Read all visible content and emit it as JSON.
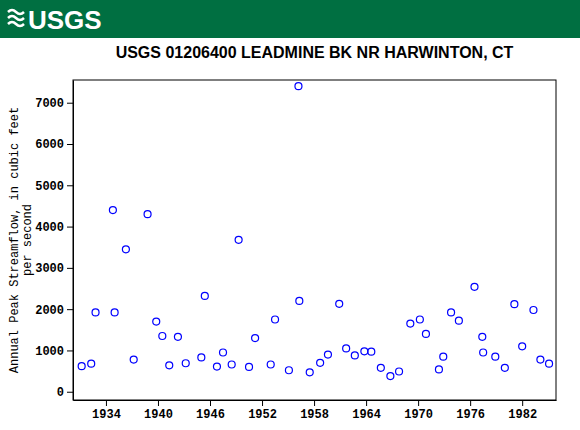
{
  "header": {
    "logo": "USGS"
  },
  "chart_data": {
    "type": "scatter",
    "title": "USGS 01206400 LEADMINE BK NR HARWINTON, CT",
    "y_label": [
      "Annual Peak Streamflow, in cubic feet",
      "per second"
    ],
    "x": [
      1931.2,
      1932.3,
      1932.8,
      1934.8,
      1935.0,
      1936.3,
      1937.2,
      1938.8,
      1939.8,
      1940.5,
      1941.3,
      1942.3,
      1943.2,
      1945.0,
      1945.4,
      1946.8,
      1947.5,
      1948.5,
      1949.3,
      1950.5,
      1951.2,
      1953.0,
      1953.5,
      1955.1,
      1956.2,
      1956.3,
      1957.5,
      1958.7,
      1959.6,
      1960.9,
      1961.7,
      1962.7,
      1963.8,
      1964.6,
      1965.7,
      1966.8,
      1967.8,
      1969.1,
      1970.2,
      1970.9,
      1972.4,
      1972.9,
      1973.8,
      1974.7,
      1976.5,
      1977.4,
      1977.5,
      1978.9,
      1980.0,
      1981.1,
      1982.0,
      1983.3,
      1984.1,
      1985.1
    ],
    "values": [
      620,
      680,
      1920,
      4400,
      1920,
      3450,
      780,
      4300,
      1700,
      1350,
      640,
      1330,
      690,
      830,
      2320,
      610,
      950,
      660,
      3680,
      600,
      1300,
      660,
      1750,
      520,
      7400,
      2200,
      470,
      700,
      900,
      2130,
      1050,
      880,
      980,
      970,
      580,
      380,
      490,
      1650,
      1750,
      1400,
      540,
      850,
      1920,
      1720,
      2540,
      1330,
      950,
      850,
      580,
      2120,
      1100,
      1980,
      780,
      680
    ],
    "color": "#0000ff",
    "marker": "circle-open",
    "xlim": [
      1930.2,
      1985.9
    ],
    "xticks": [
      1934,
      1940,
      1946,
      1952,
      1958,
      1964,
      1970,
      1976,
      1982
    ],
    "ylim": [
      -200,
      7550
    ],
    "yticks": [
      0,
      1000,
      2000,
      3000,
      4000,
      5000,
      6000,
      7000
    ],
    "grid": false
  }
}
